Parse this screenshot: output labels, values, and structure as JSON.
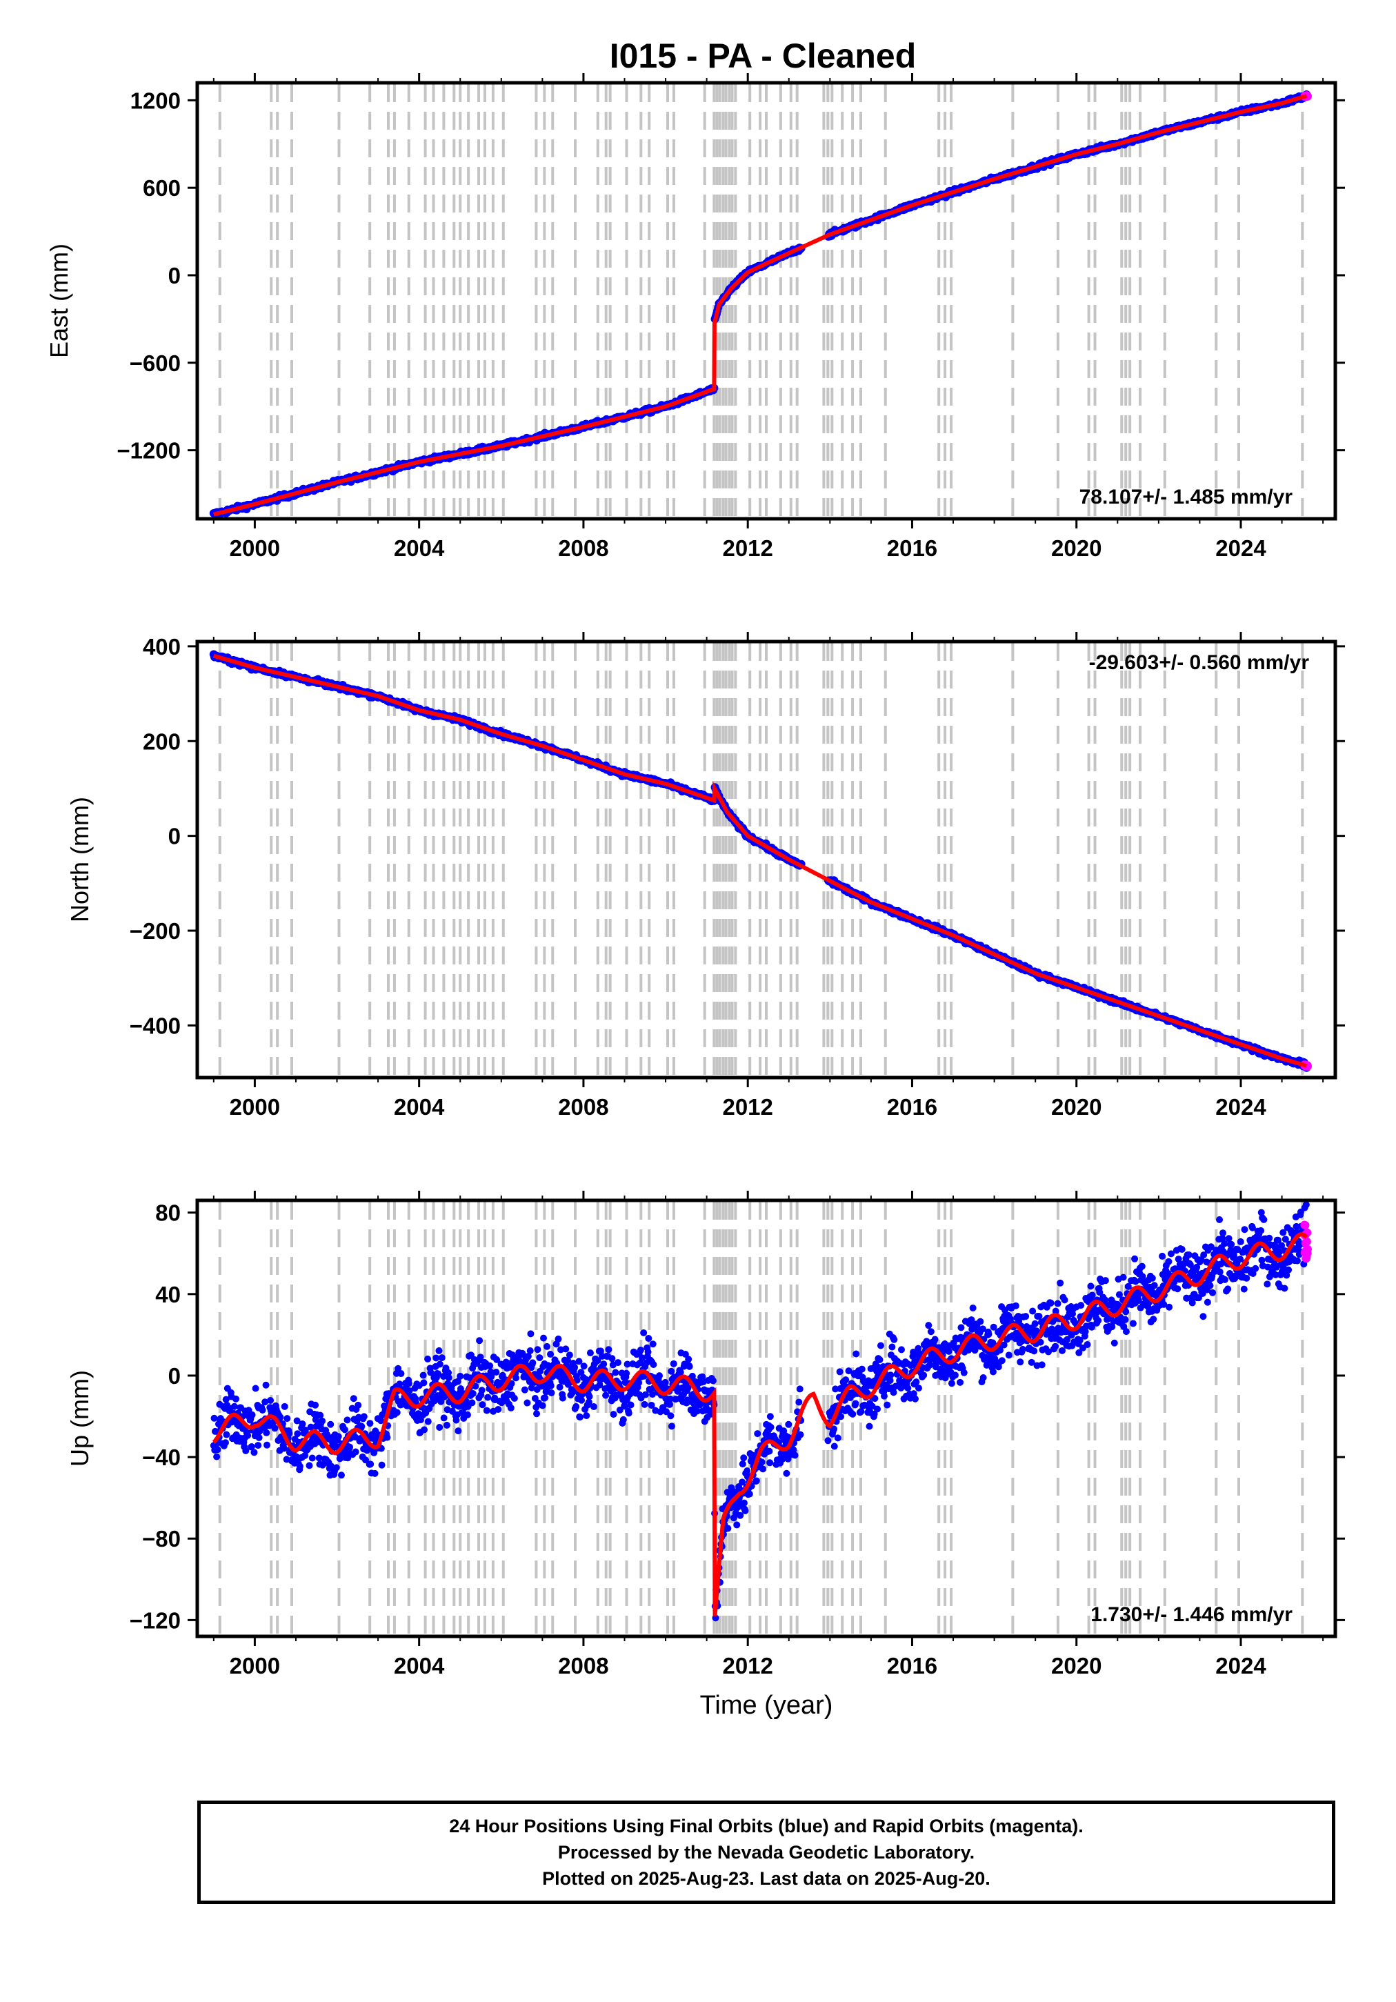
{
  "title": "I015  - PA - Cleaned",
  "colors": {
    "final_orbits": "#0000ff",
    "rapid_orbits": "#ff00ff",
    "model_fit": "#ff0000",
    "event_lines": "#c4c4c4"
  },
  "chart_data": [
    {
      "type": "scatter",
      "ylabel": "East (mm)",
      "xlabel": "",
      "xlim": [
        1998.6,
        2026.3
      ],
      "ylim": [
        -1670,
        1320
      ],
      "x_ticks": [
        2000,
        2004,
        2008,
        2012,
        2016,
        2020,
        2024
      ],
      "y_ticks": [
        1200,
        600,
        0,
        -600,
        -1200
      ],
      "y_tick_labels": [
        "1200",
        "600",
        "0",
        "−600",
        "−1200"
      ],
      "rate_label": "78.107+/- 1.485 mm/yr",
      "rate_position": "bottom-right",
      "series": [
        {
          "values_x": [
            1999.0,
            2000.0,
            2002.0,
            2004.0,
            2006.0,
            2008.0,
            2010.0,
            2011.18,
            2011.19,
            2011.3,
            2011.6,
            2012.0,
            2012.6,
            2013.3,
            2014.0,
            2015.0,
            2016.0,
            2017.0,
            2018.0,
            2019.0,
            2020.0,
            2021.0,
            2022.0,
            2023.0,
            2024.0,
            2025.0,
            2025.6
          ],
          "values_y": [
            -1640,
            -1570,
            -1420,
            -1280,
            -1170,
            -1040,
            -900,
            -780,
            -330,
            -200,
            -90,
            20,
            100,
            190,
            280,
            380,
            480,
            570,
            660,
            745,
            830,
            900,
            980,
            1050,
            1120,
            1180,
            1230
          ]
        }
      ]
    },
    {
      "type": "scatter",
      "ylabel": "North (mm)",
      "xlabel": "",
      "xlim": [
        1998.6,
        2026.3
      ],
      "ylim": [
        -510,
        410
      ],
      "x_ticks": [
        2000,
        2004,
        2008,
        2012,
        2016,
        2020,
        2024
      ],
      "y_ticks": [
        400,
        200,
        0,
        -200,
        -400
      ],
      "y_tick_labels": [
        "400",
        "200",
        "0",
        "−200",
        "−400"
      ],
      "rate_label": "-29.603+/- 0.560 mm/yr",
      "rate_position": "top-right",
      "series": [
        {
          "values_x": [
            1999.0,
            2000.0,
            2001.0,
            2002.0,
            2003.0,
            2004.0,
            2005.0,
            2006.0,
            2007.0,
            2008.0,
            2009.0,
            2010.0,
            2011.18,
            2011.19,
            2011.5,
            2012.0,
            2013.0,
            2014.0,
            2015.0,
            2016.0,
            2017.0,
            2018.0,
            2019.0,
            2020.0,
            2021.0,
            2022.0,
            2023.0,
            2024.0,
            2025.0,
            2025.6
          ],
          "values_y": [
            380,
            355,
            335,
            315,
            295,
            265,
            245,
            215,
            190,
            160,
            130,
            110,
            75,
            100,
            50,
            0,
            -50,
            -95,
            -140,
            -175,
            -210,
            -250,
            -290,
            -320,
            -350,
            -380,
            -410,
            -440,
            -470,
            -485
          ]
        }
      ]
    },
    {
      "type": "scatter",
      "ylabel": "Up (mm)",
      "xlabel": "Time (year)",
      "xlim": [
        1998.6,
        2026.3
      ],
      "ylim": [
        -128,
        86
      ],
      "x_ticks": [
        2000,
        2004,
        2008,
        2012,
        2016,
        2020,
        2024
      ],
      "y_ticks": [
        80,
        40,
        0,
        -40,
        -80,
        -120
      ],
      "y_tick_labels": [
        "80",
        "40",
        "0",
        "−40",
        "−80",
        "−120"
      ],
      "rate_label": "1.730+/- 1.446 mm/yr",
      "rate_position": "bottom-right",
      "series": [
        {
          "values_x": [
            1999.0,
            2000.0,
            2001.0,
            2002.0,
            2003.0,
            2003.4,
            2004.0,
            2005.0,
            2006.0,
            2007.0,
            2008.0,
            2009.0,
            2010.0,
            2011.18,
            2011.2,
            2011.4,
            2011.8,
            2012.3,
            2013.0,
            2013.6,
            2014.0,
            2014.5,
            2015.0,
            2016.0,
            2017.0,
            2018.0,
            2019.0,
            2020.0,
            2021.0,
            2022.0,
            2023.0,
            2024.0,
            2025.0,
            2025.6
          ],
          "values_y": [
            -28,
            -20,
            -32,
            -33,
            -30,
            -12,
            -10,
            -8,
            -2,
            2,
            -3,
            -2,
            -4,
            -8,
            -118,
            -75,
            -55,
            -40,
            -30,
            -12,
            -20,
            -10,
            -5,
            5,
            12,
            18,
            22,
            28,
            35,
            42,
            50,
            58,
            62,
            65
          ]
        }
      ]
    }
  ],
  "event_lines_x": [
    1999.15,
    2000.4,
    2000.55,
    2000.9,
    2002.05,
    2002.8,
    2003.25,
    2003.4,
    2003.75,
    2004.15,
    2004.35,
    2004.6,
    2004.85,
    2005.0,
    2005.2,
    2005.45,
    2005.6,
    2005.8,
    2006.05,
    2006.85,
    2007.05,
    2007.25,
    2007.8,
    2008.35,
    2008.55,
    2008.65,
    2009.05,
    2009.4,
    2009.6,
    2010.05,
    2010.2,
    2010.95,
    2011.18,
    2011.25,
    2011.32,
    2011.4,
    2011.47,
    2011.55,
    2011.62,
    2011.7,
    2012.05,
    2012.3,
    2012.45,
    2012.8,
    2013.05,
    2013.2,
    2013.85,
    2013.95,
    2014.05,
    2014.3,
    2014.55,
    2014.75,
    2015.35,
    2016.65,
    2016.8,
    2016.95,
    2018.45,
    2019.55,
    2020.3,
    2020.45,
    2021.1,
    2021.2,
    2021.3,
    2021.55,
    2022.15,
    2023.4,
    2023.95,
    2025.5
  ],
  "footer": {
    "line1": "24 Hour Positions Using Final Orbits (blue) and Rapid Orbits (magenta).",
    "line2": "Processed by the Nevada Geodetic Laboratory.",
    "line3": "Plotted on 2025-Aug-23. Last data on 2025-Aug-20."
  }
}
